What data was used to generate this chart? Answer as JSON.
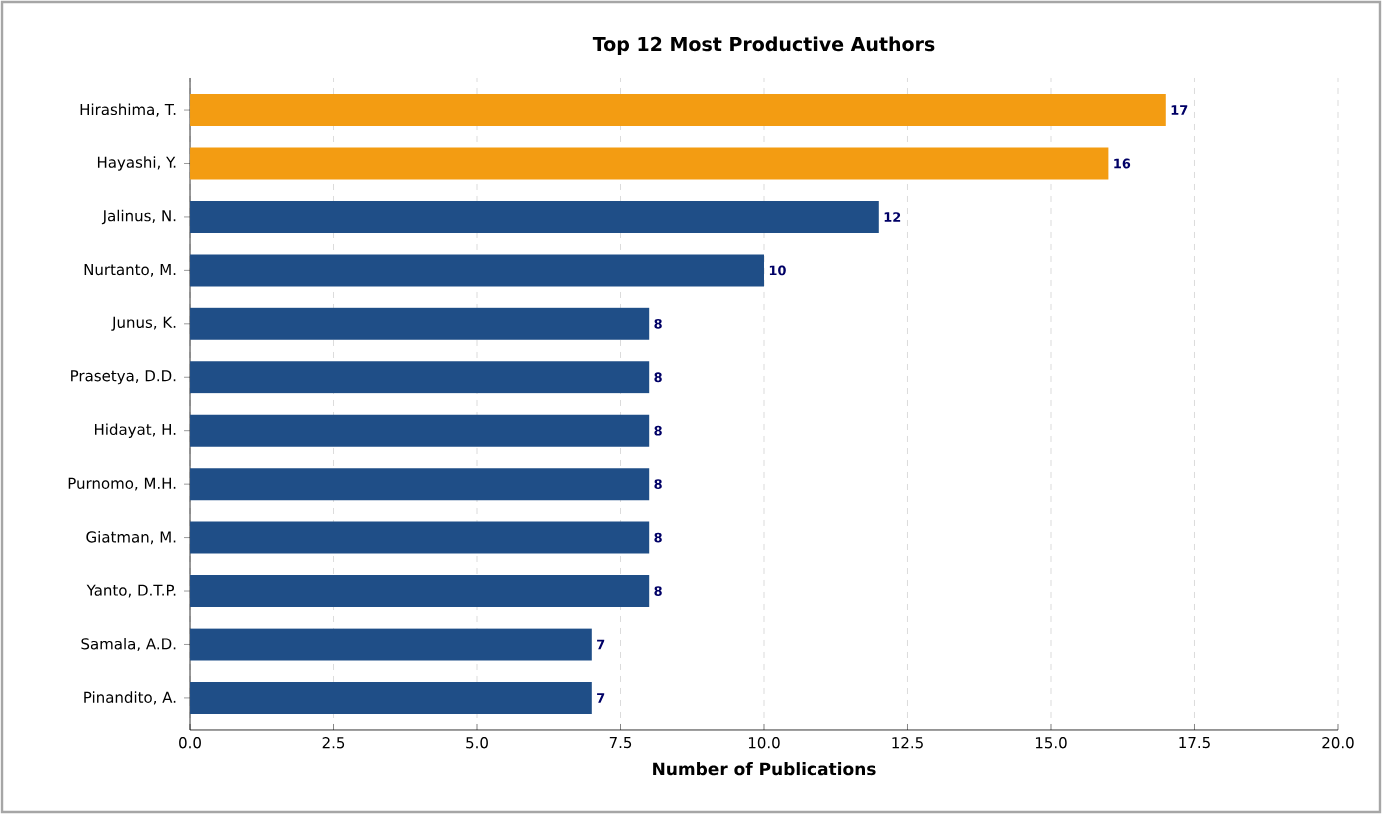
{
  "chart_data": {
    "type": "bar",
    "orientation": "horizontal",
    "title": "Top 12 Most Productive Authors",
    "xlabel": "Number of Publications",
    "categories": [
      "Hirashima, T.",
      "Hayashi, Y.",
      "Jalinus, N.",
      "Nurtanto, M.",
      "Junus, K.",
      "Prasetya, D.D.",
      "Hidayat, H.",
      "Purnomo, M.H.",
      "Giatman, M.",
      "Yanto, D.T.P.",
      "Samala, A.D.",
      "Pinandito, A."
    ],
    "values": [
      17,
      16,
      12,
      10,
      8,
      8,
      8,
      8,
      8,
      8,
      7,
      7
    ],
    "colors": [
      "#f39c12",
      "#f39c12",
      "#1f4e87",
      "#1f4e87",
      "#1f4e87",
      "#1f4e87",
      "#1f4e87",
      "#1f4e87",
      "#1f4e87",
      "#1f4e87",
      "#1f4e87",
      "#1f4e87"
    ],
    "xlim": [
      0,
      20
    ],
    "xticks": [
      {
        "value": 0,
        "label": "0.0"
      },
      {
        "value": 2.5,
        "label": "2.5"
      },
      {
        "value": 5,
        "label": "5.0"
      },
      {
        "value": 7.5,
        "label": "7.5"
      },
      {
        "value": 10,
        "label": "10.0"
      },
      {
        "value": 12.5,
        "label": "12.5"
      },
      {
        "value": 15,
        "label": "15.0"
      },
      {
        "value": 17.5,
        "label": "17.5"
      },
      {
        "value": 20,
        "label": "20.0"
      }
    ],
    "grid": "x",
    "data_labels": true
  }
}
